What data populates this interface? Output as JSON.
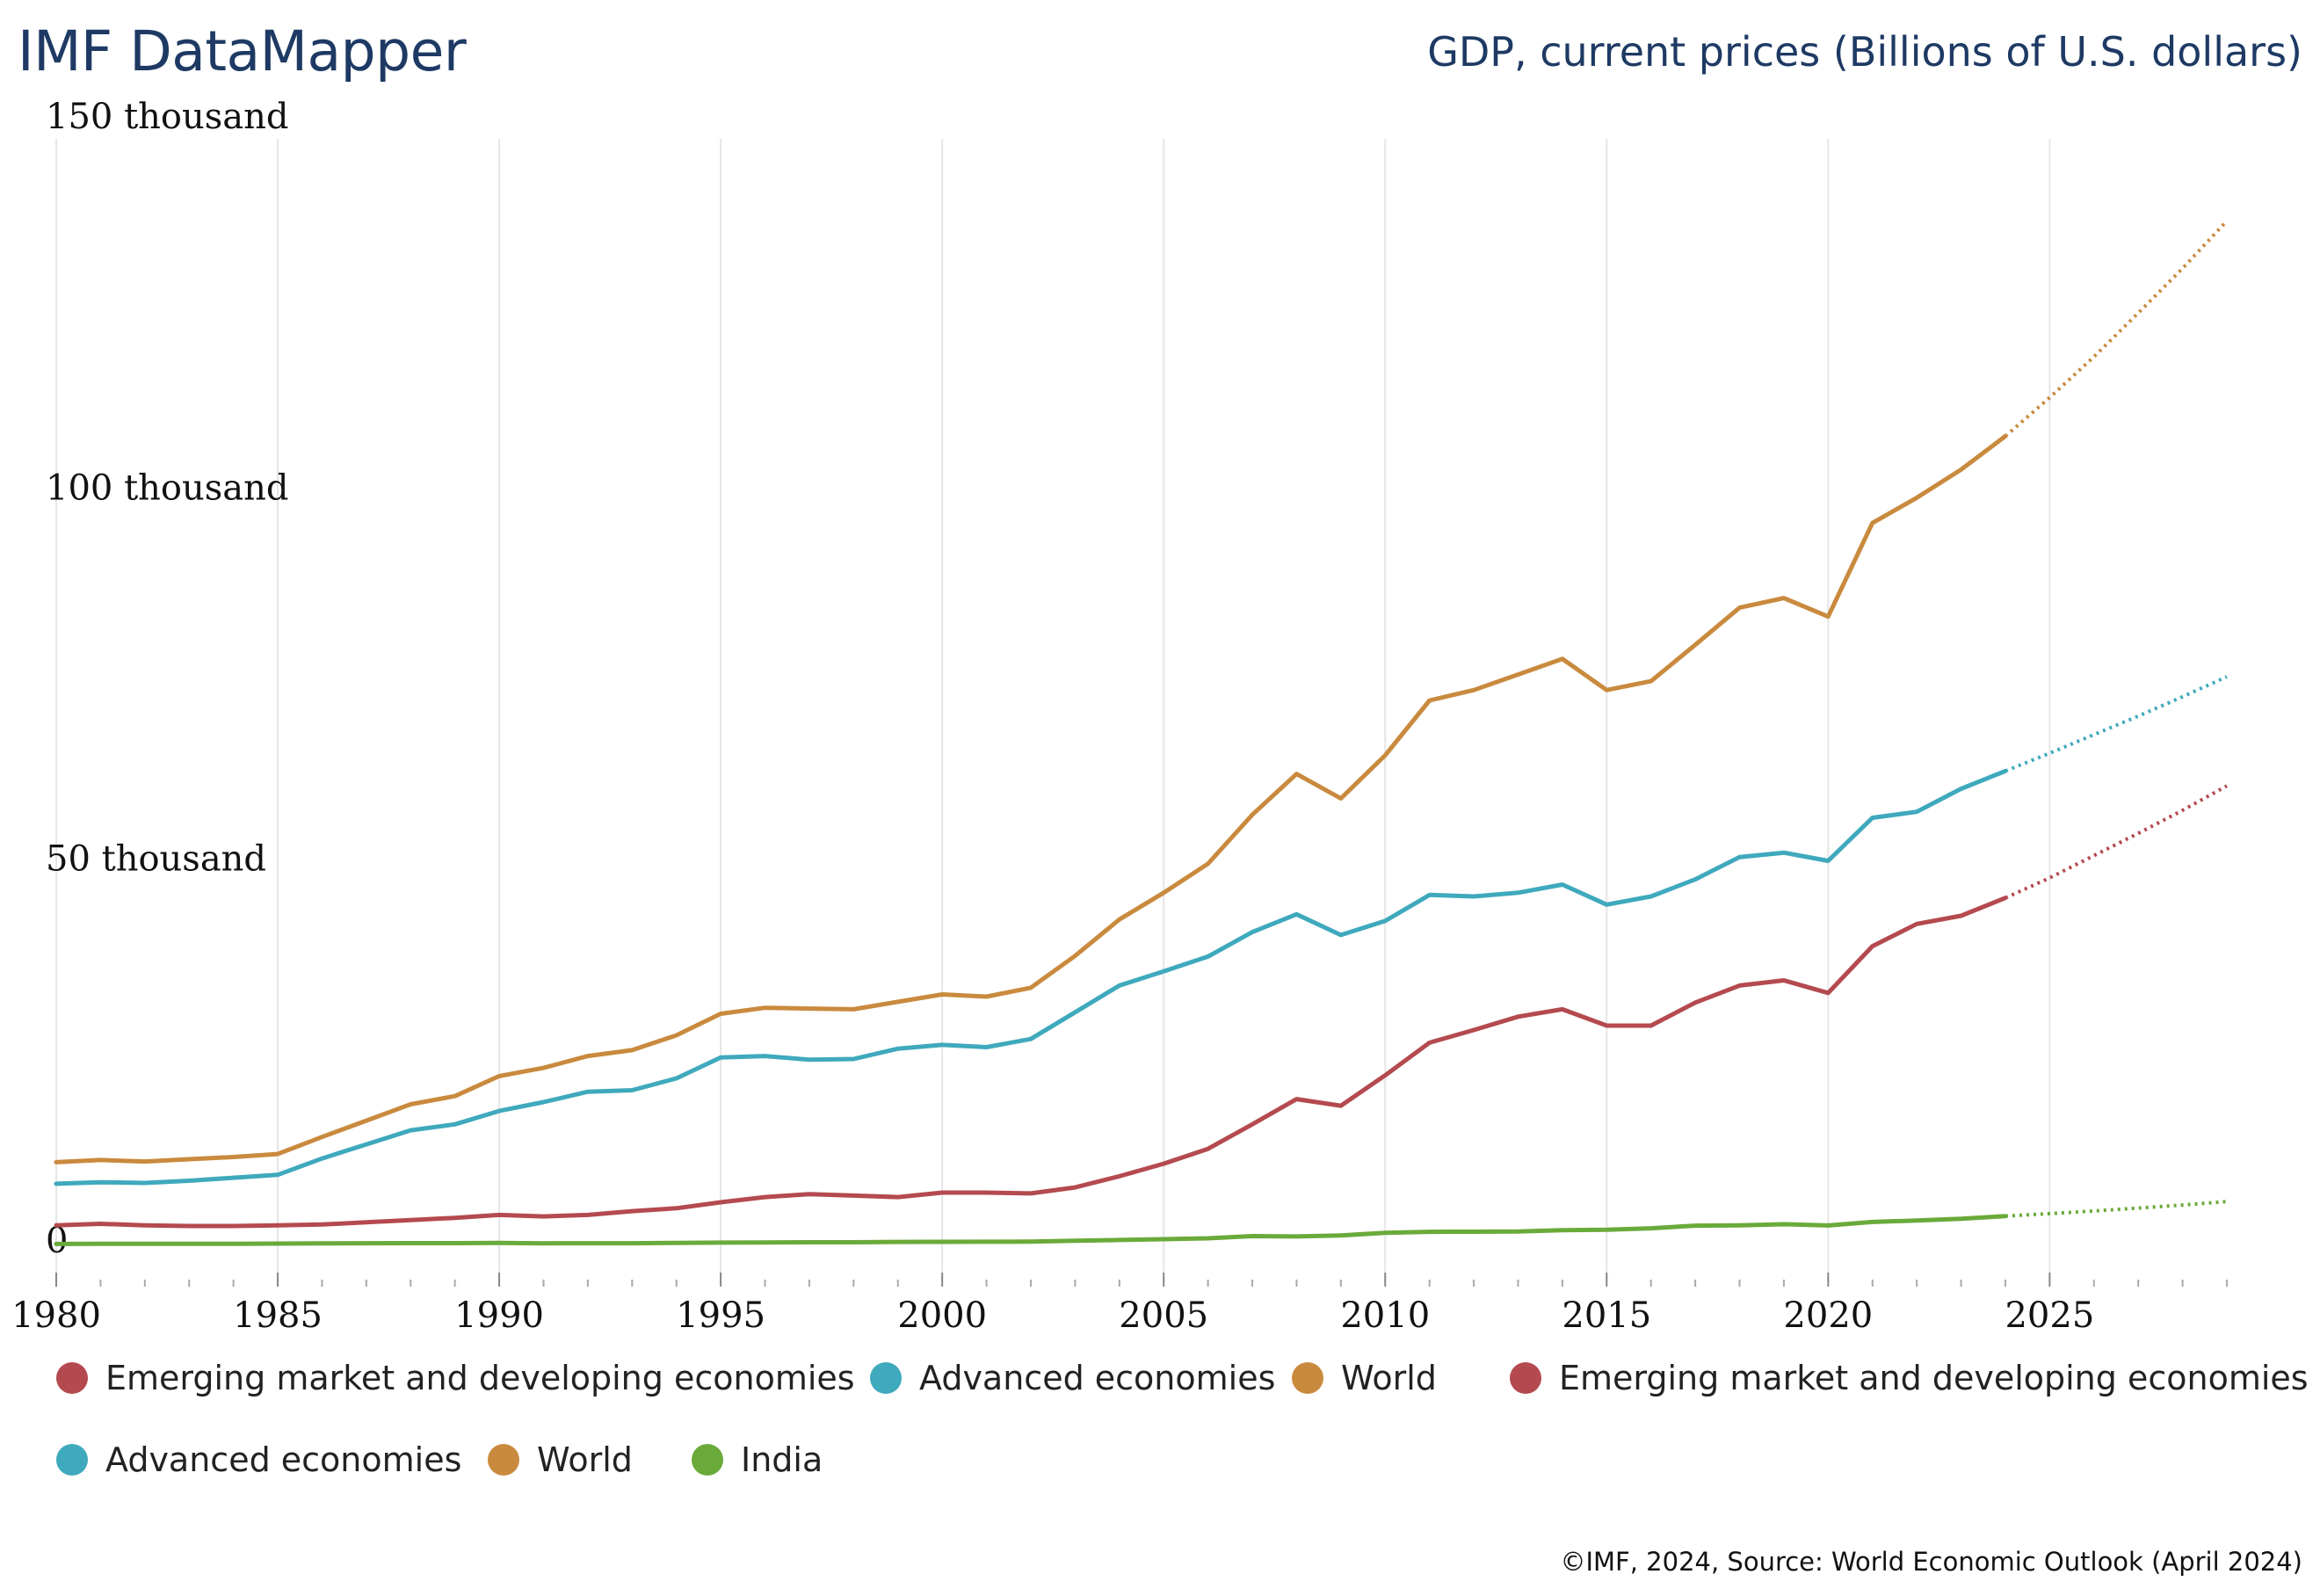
{
  "header": {
    "brand": "IMF DataMapper",
    "title": "GDP, current prices (Billions of U.S. dollars)"
  },
  "footer": {
    "credit": "©IMF, 2024, Source: World Economic Outlook (April 2024)"
  },
  "chart_data": {
    "type": "line",
    "title": "GDP, current prices (Billions of U.S. dollars)",
    "xlabel": "",
    "ylabel": "",
    "xlim": [
      1980,
      2029
    ],
    "ylim": [
      0,
      150000
    ],
    "grid": "vertical",
    "projection_start": 2024,
    "x_ticks": [
      "1980",
      "1985",
      "1990",
      "1995",
      "2000",
      "2005",
      "2010",
      "2015",
      "2020",
      "2025"
    ],
    "x_tick_values": [
      1980,
      1985,
      1990,
      1995,
      2000,
      2005,
      2010,
      2015,
      2020,
      2025
    ],
    "y_ticks": [
      "0",
      "50 thousand",
      "100 thousand",
      "150 thousand"
    ],
    "y_tick_values": [
      0,
      50000,
      100000,
      150000
    ],
    "x": [
      1980,
      1981,
      1982,
      1983,
      1984,
      1985,
      1986,
      1987,
      1988,
      1989,
      1990,
      1991,
      1992,
      1993,
      1994,
      1995,
      1996,
      1997,
      1998,
      1999,
      2000,
      2001,
      2002,
      2003,
      2004,
      2005,
      2006,
      2007,
      2008,
      2009,
      2010,
      2011,
      2012,
      2013,
      2014,
      2015,
      2016,
      2017,
      2018,
      2019,
      2020,
      2021,
      2022,
      2023,
      2024,
      2025,
      2026,
      2027,
      2028,
      2029
    ],
    "series": [
      {
        "name": "World",
        "color": "#c98a3e",
        "values": [
          11200,
          11500,
          11300,
          11600,
          11900,
          12300,
          14600,
          16800,
          19000,
          20100,
          22800,
          23900,
          25500,
          26300,
          28300,
          31200,
          32000,
          31900,
          31800,
          32800,
          33800,
          33500,
          34700,
          39000,
          43900,
          47500,
          51400,
          58000,
          63500,
          60200,
          66000,
          73400,
          74800,
          76900,
          79000,
          74800,
          76000,
          80900,
          85900,
          87200,
          84700,
          97300,
          100700,
          104500,
          109000,
          114200,
          119700,
          125600,
          131600,
          138000
        ]
      },
      {
        "name": "Advanced economies",
        "color": "#3fa9bd",
        "values": [
          8300,
          8500,
          8400,
          8700,
          9100,
          9500,
          11700,
          13600,
          15500,
          16300,
          18100,
          19300,
          20700,
          20900,
          22500,
          25300,
          25500,
          25000,
          25100,
          26500,
          27000,
          26700,
          27800,
          31400,
          35000,
          36900,
          38900,
          42200,
          44600,
          41800,
          43700,
          47200,
          47000,
          47500,
          48600,
          45900,
          47000,
          49300,
          52300,
          52900,
          51800,
          57600,
          58400,
          61500,
          63900,
          66300,
          68800,
          71300,
          73900,
          76600
        ]
      },
      {
        "name": "Emerging market and developing economies",
        "color": "#b44a4f",
        "values": [
          2700,
          2900,
          2700,
          2600,
          2600,
          2700,
          2800,
          3100,
          3400,
          3700,
          4100,
          3900,
          4100,
          4600,
          5000,
          5800,
          6500,
          6900,
          6700,
          6500,
          7100,
          7100,
          7000,
          7800,
          9300,
          11000,
          13000,
          16300,
          19700,
          18800,
          22900,
          27300,
          29000,
          30800,
          31800,
          29600,
          29600,
          32700,
          35000,
          35700,
          34000,
          40300,
          43300,
          44400,
          46800,
          49500,
          52500,
          55500,
          58600,
          61900
        ]
      },
      {
        "name": "India",
        "color": "#6aaa3a",
        "values": [
          190,
          200,
          205,
          210,
          215,
          235,
          255,
          285,
          300,
          300,
          320,
          275,
          290,
          285,
          330,
          366,
          390,
          420,
          420,
          460,
          470,
          480,
          510,
          610,
          720,
          830,
          950,
          1240,
          1200,
          1340,
          1680,
          1820,
          1830,
          1860,
          2040,
          2100,
          2300,
          2650,
          2700,
          2840,
          2670,
          3150,
          3350,
          3570,
          3940,
          4270,
          4630,
          5020,
          5440,
          5900
        ]
      }
    ],
    "legend": [
      {
        "label": "Emerging market and developing economies",
        "color": "#b44a4f"
      },
      {
        "label": "Advanced economies",
        "color": "#3fa9bd"
      },
      {
        "label": "World",
        "color": "#c98a3e"
      },
      {
        "label": "Emerging market and developing economies",
        "color": "#b44a4f"
      },
      {
        "label": "Advanced economies",
        "color": "#3fa9bd"
      },
      {
        "label": "World",
        "color": "#c98a3e"
      },
      {
        "label": "India",
        "color": "#6aaa3a"
      }
    ]
  }
}
